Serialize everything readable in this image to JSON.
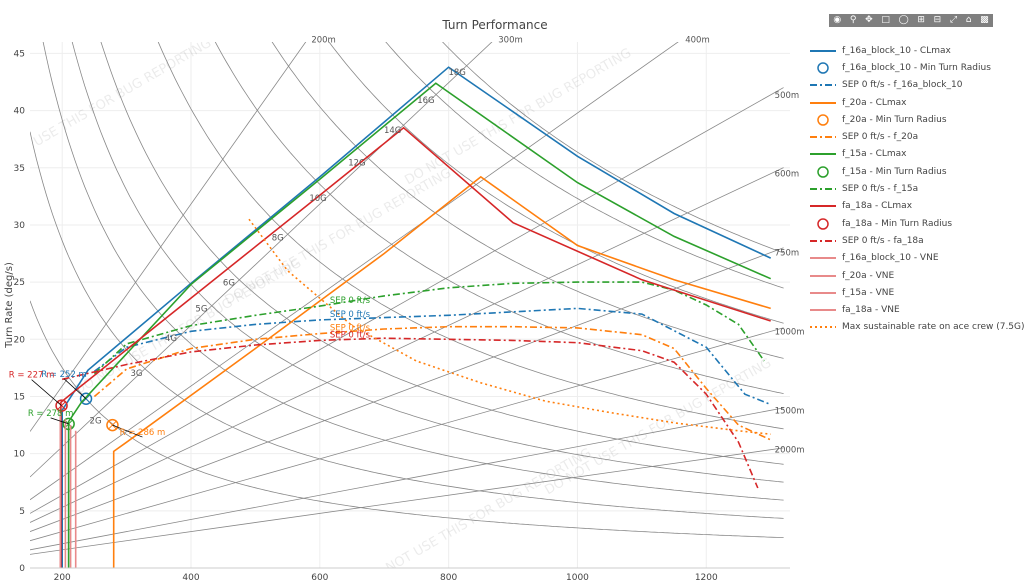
{
  "chart_data": {
    "type": "line",
    "title": "Turn Performance",
    "xlabel": "",
    "ylabel": "Turn Rate (deg/s)",
    "xlim": [
      150,
      1330
    ],
    "ylim": [
      0,
      46
    ],
    "x_ticks": [
      200,
      400,
      600,
      800,
      1000,
      1200
    ],
    "y_ticks": [
      0,
      5,
      10,
      15,
      20,
      25,
      30,
      35,
      40,
      45
    ],
    "grid": true,
    "legend_position": "right",
    "watermark": "DO NOT USE THIS FOR BUG REPORTING",
    "g_lines": {
      "color": "#888888",
      "labels": [
        "2G",
        "3G",
        "4G",
        "5G",
        "6G",
        "8G",
        "10G",
        "12G",
        "14G",
        "16G",
        "18G"
      ],
      "g_values": [
        2,
        3,
        4,
        5,
        6,
        8,
        10,
        12,
        14,
        16,
        18
      ]
    },
    "radius_lines": {
      "color": "#888888",
      "labels": [
        "200m",
        "300m",
        "400m",
        "500m",
        "600m",
        "750m",
        "1000m",
        "1500m",
        "2000m"
      ],
      "radii_m": [
        200,
        300,
        400,
        500,
        600,
        750,
        1000,
        1500,
        2000
      ]
    },
    "series": [
      {
        "name": "f_16a_block_10 - CLmax",
        "color": "#1f77b4",
        "dash": "solid",
        "x": [
          200,
          200,
          240,
          400,
          600,
          800,
          1000,
          1150,
          1300
        ],
        "y": [
          0,
          13.8,
          17.3,
          24.9,
          34.2,
          43.8,
          36,
          31,
          27.1
        ]
      },
      {
        "name": "f_16a_block_10 - Min Turn Radius",
        "color": "#1f77b4",
        "marker": "circle",
        "label": "R = 252 m",
        "x": [
          237
        ],
        "y": [
          14.8
        ]
      },
      {
        "name": "SEP 0 ft/s - f_16a_block_10",
        "color": "#1f77b4",
        "dash": "dashdot",
        "label": "SEP 0 ft/s",
        "x": [
          250,
          300,
          400,
          500,
          600,
          800,
          1000,
          1100,
          1200,
          1260,
          1300
        ],
        "y": [
          17.2,
          19.3,
          20.7,
          21.3,
          21.7,
          22.1,
          22.7,
          22.2,
          19.3,
          15.2,
          14.3
        ]
      },
      {
        "name": "f_20a - CLmax",
        "color": "#ff7f0e",
        "dash": "solid",
        "x": [
          280,
          280,
          300,
          500,
          700,
          850,
          1000,
          1150,
          1300
        ],
        "y": [
          0,
          10.2,
          11,
          19.2,
          27.5,
          34.2,
          28.2,
          25.2,
          22.7
        ]
      },
      {
        "name": "f_20a - Min Turn Radius",
        "color": "#ff7f0e",
        "marker": "circle",
        "label": "R = 286 m",
        "x": [
          278
        ],
        "y": [
          12.5
        ]
      },
      {
        "name": "SEP 0 ft/s - f_20a",
        "color": "#ff7f0e",
        "dash": "dashdot",
        "label": "SEP 0 ft/s",
        "x": [
          250,
          300,
          400,
          500,
          600,
          700,
          800,
          900,
          1000,
          1100,
          1150,
          1200,
          1250,
          1300
        ],
        "y": [
          15,
          17.4,
          19.2,
          20,
          20.5,
          20.9,
          21.1,
          21.1,
          21,
          20.4,
          19.2,
          15.7,
          12.5,
          11.2
        ]
      },
      {
        "name": "f_15a - CLmax",
        "color": "#2ca02c",
        "dash": "solid",
        "x": [
          210,
          210,
          230,
          400,
          600,
          780,
          1000,
          1150,
          1300
        ],
        "y": [
          0,
          12.8,
          14.5,
          24.8,
          34,
          42.4,
          33.7,
          29,
          25.3
        ]
      },
      {
        "name": "f_15a - Min Turn Radius",
        "color": "#2ca02c",
        "marker": "circle",
        "label": "R = 278 m",
        "x": [
          210
        ],
        "y": [
          12.6
        ]
      },
      {
        "name": "SEP 0 ft/s - f_15a",
        "color": "#2ca02c",
        "dash": "dashdot",
        "label": "SEP 0 ft/s",
        "x": [
          250,
          300,
          400,
          500,
          600,
          700,
          800,
          900,
          1000,
          1100,
          1150,
          1200,
          1250,
          1290
        ],
        "y": [
          17,
          19.6,
          21.2,
          22.1,
          22.9,
          23.8,
          24.5,
          24.9,
          25,
          25,
          24.3,
          23,
          21.3,
          18.1
        ]
      },
      {
        "name": "fa_18a - CLmax",
        "color": "#d62728",
        "dash": "solid",
        "x": [
          198,
          198,
          220,
          400,
          600,
          730,
          900,
          1100,
          1300
        ],
        "y": [
          0,
          14.5,
          15.5,
          23.6,
          32.6,
          38.5,
          30.2,
          25.2,
          21.6
        ]
      },
      {
        "name": "fa_18a - Min Turn Radius",
        "color": "#d62728",
        "marker": "circle",
        "label": "R = 227 m",
        "x": [
          199
        ],
        "y": [
          14.2
        ]
      },
      {
        "name": "SEP 0 ft/s - fa_18a",
        "color": "#d62728",
        "dash": "dashdot",
        "label": "SEP 0 ft/s",
        "x": [
          200,
          300,
          400,
          500,
          600,
          700,
          800,
          900,
          1000,
          1100,
          1150,
          1200,
          1250,
          1280
        ],
        "y": [
          16.5,
          17.8,
          18.9,
          19.5,
          19.9,
          20.1,
          20,
          19.9,
          19.7,
          19,
          18,
          15.2,
          11,
          7
        ]
      },
      {
        "name": "f_16a_block_10 - VNE",
        "color": "#e88a8a",
        "dash": "solid",
        "x": [
          197,
          197
        ],
        "y": [
          0,
          13.5
        ]
      },
      {
        "name": "f_20a - VNE",
        "color": "#e88a8a",
        "dash": "solid",
        "x": [
          205,
          205
        ],
        "y": [
          0,
          13
        ]
      },
      {
        "name": "f_15a - VNE",
        "color": "#e88a8a",
        "dash": "solid",
        "x": [
          213,
          213
        ],
        "y": [
          0,
          12.5
        ]
      },
      {
        "name": "fa_18a - VNE",
        "color": "#e88a8a",
        "dash": "solid",
        "x": [
          221,
          221
        ],
        "y": [
          0,
          12
        ]
      },
      {
        "name": "Max sustainable rate on ace crew (7.5G)",
        "color": "#ff7f0e",
        "dash": "dot",
        "x": [
          490,
          550,
          650,
          750,
          850,
          950,
          1050,
          1150,
          1250,
          1300
        ],
        "y": [
          30.5,
          26,
          21.2,
          18.1,
          16.2,
          14.6,
          13.6,
          12.7,
          12,
          11.7
        ]
      }
    ]
  },
  "modebar_icons": [
    "camera-icon",
    "zoom-icon",
    "pan-icon",
    "box-select-icon",
    "lasso-icon",
    "zoom-in-icon",
    "zoom-out-icon",
    "autoscale-icon",
    "reset-axes-icon",
    "plotly-logo-icon"
  ]
}
